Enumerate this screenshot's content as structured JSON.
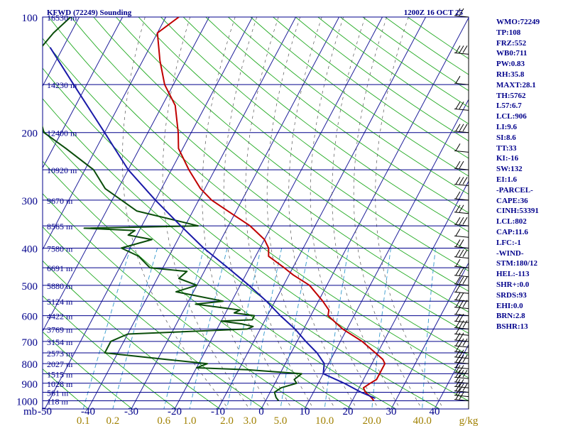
{
  "chart_data": {
    "type": "line",
    "title": "KFWD (72249) Sounding",
    "time": "1200Z 16 OCT 25",
    "pressure_unit": "mb",
    "mixing_ratio_unit": "g/kg",
    "pressure_levels": [
      100,
      200,
      300,
      400,
      500,
      600,
      700,
      800,
      900,
      1000
    ],
    "height_labels": [
      {
        "p": 100,
        "label": "16530 m"
      },
      {
        "p": 150,
        "label": "14230 m"
      },
      {
        "p": 200,
        "label": "12400 m"
      },
      {
        "p": 250,
        "label": "10920 m"
      },
      {
        "p": 300,
        "label": "9670 m"
      },
      {
        "p": 350,
        "label": "8565 m"
      },
      {
        "p": 400,
        "label": "7580 m"
      },
      {
        "p": 450,
        "label": "6691 m"
      },
      {
        "p": 500,
        "label": "5880 m"
      },
      {
        "p": 550,
        "label": "5124 m"
      },
      {
        "p": 600,
        "label": "4422 m"
      },
      {
        "p": 650,
        "label": "3769 m"
      },
      {
        "p": 700,
        "label": "3154 m"
      },
      {
        "p": 750,
        "label": "2573 m"
      },
      {
        "p": 800,
        "label": "2027 m"
      },
      {
        "p": 850,
        "label": "1515 m"
      },
      {
        "p": 900,
        "label": "1028 m"
      },
      {
        "p": 950,
        "label": "561 m"
      },
      {
        "p": 1000,
        "label": "118 m"
      }
    ],
    "temp_ticks": [
      -50,
      -40,
      -30,
      -20,
      -10,
      0,
      10,
      20,
      30,
      40
    ],
    "temp_tick_labels": [
      "-50",
      "-40",
      "-30",
      "-20",
      "-10",
      "0",
      "10",
      "20",
      "30",
      "40"
    ],
    "mixing_ratio_ticks": [
      {
        "label": "0.1",
        "value": 0.1
      },
      {
        "label": "0.2",
        "value": 0.2
      },
      {
        "label": "0.6",
        "value": 0.6
      },
      {
        "label": "1.0",
        "value": 1.0
      },
      {
        "label": "2.0",
        "value": 2.0
      },
      {
        "label": "3.0",
        "value": 3.0
      },
      {
        "label": "5.0",
        "value": 5.0
      },
      {
        "label": "10.0",
        "value": 10.0
      },
      {
        "label": "20.0",
        "value": 20.0
      },
      {
        "label": "40.0",
        "value": 40.0
      }
    ],
    "series": [
      {
        "key": "temperature",
        "color": "#c00000",
        "points": [
          [
            1000,
            25
          ],
          [
            980,
            24
          ],
          [
            950,
            22
          ],
          [
            925,
            21
          ],
          [
            900,
            22
          ],
          [
            880,
            23
          ],
          [
            850,
            23
          ],
          [
            800,
            23
          ],
          [
            780,
            22
          ],
          [
            750,
            19.5
          ],
          [
            700,
            15
          ],
          [
            650,
            9
          ],
          [
            600,
            4
          ],
          [
            580,
            3.5
          ],
          [
            550,
            1
          ],
          [
            500,
            -4
          ],
          [
            470,
            -9
          ],
          [
            450,
            -12
          ],
          [
            420,
            -17
          ],
          [
            400,
            -18
          ],
          [
            380,
            -20
          ],
          [
            350,
            -25
          ],
          [
            320,
            -32
          ],
          [
            300,
            -37
          ],
          [
            280,
            -41
          ],
          [
            250,
            -46
          ],
          [
            220,
            -51
          ],
          [
            200,
            -53
          ],
          [
            170,
            -57
          ],
          [
            150,
            -62
          ],
          [
            130,
            -66
          ],
          [
            110,
            -70
          ],
          [
            100,
            -67
          ]
        ]
      },
      {
        "key": "dewpoint",
        "color": "#0a4d0a",
        "points": [
          [
            1000,
            3
          ],
          [
            980,
            2
          ],
          [
            950,
            1
          ],
          [
            925,
            2
          ],
          [
            900,
            5
          ],
          [
            880,
            4
          ],
          [
            850,
            5
          ],
          [
            830,
            -8
          ],
          [
            820,
            -20
          ],
          [
            800,
            -18
          ],
          [
            780,
            -28
          ],
          [
            750,
            -43
          ],
          [
            700,
            -43
          ],
          [
            670,
            -40
          ],
          [
            650,
            -13
          ],
          [
            640,
            -12
          ],
          [
            630,
            -15
          ],
          [
            620,
            -20
          ],
          [
            615,
            -13
          ],
          [
            600,
            -13
          ],
          [
            590,
            -18
          ],
          [
            580,
            -17
          ],
          [
            560,
            -28
          ],
          [
            550,
            -22
          ],
          [
            520,
            -34
          ],
          [
            500,
            -30
          ],
          [
            480,
            -35
          ],
          [
            460,
            -34
          ],
          [
            450,
            -43
          ],
          [
            420,
            -47
          ],
          [
            400,
            -52
          ],
          [
            380,
            -46
          ],
          [
            370,
            -52
          ],
          [
            360,
            -51
          ],
          [
            355,
            -63
          ],
          [
            350,
            -37
          ],
          [
            320,
            -53
          ],
          [
            280,
            -63
          ],
          [
            250,
            -68
          ],
          [
            220,
            -77
          ],
          [
            200,
            -84
          ],
          [
            170,
            -89
          ],
          [
            150,
            -95
          ],
          [
            130,
            -96
          ],
          [
            110,
            -94
          ],
          [
            100,
            -92
          ]
        ]
      },
      {
        "key": "parcel",
        "color": "#1a1aa8",
        "points": [
          [
            985,
            25
          ],
          [
            950,
            21
          ],
          [
            900,
            16
          ],
          [
            850,
            10
          ],
          [
            800,
            9
          ],
          [
            750,
            6
          ],
          [
            700,
            2
          ],
          [
            650,
            -2
          ],
          [
            600,
            -7
          ],
          [
            550,
            -12
          ],
          [
            500,
            -18
          ],
          [
            450,
            -25
          ],
          [
            400,
            -33
          ],
          [
            350,
            -41
          ],
          [
            300,
            -50
          ],
          [
            250,
            -60
          ],
          [
            200,
            -70
          ],
          [
            150,
            -83
          ],
          [
            120,
            -93
          ]
        ]
      }
    ]
  },
  "stats": [
    "WMO:72249",
    "TP:108",
    "FRZ:552",
    "WB0:711",
    "PW:0.83",
    "RH:35.8",
    "MAXT:28.1",
    "TH:5762",
    "L57:6.7",
    "LCL:906",
    "LI:9.6",
    "SI:8.6",
    "TT:33",
    "KI:-16",
    "SW:132",
    "EI:1.6",
    "-PARCEL-",
    "CAPE:36",
    "CINH:53391",
    "LCL:802",
    "CAP:11.6",
    "LFC:-1",
    "-WIND-",
    "STM:180/12",
    "HEL:-113",
    "SHR+:0.0",
    "SRDS:93",
    "EHI:0.0",
    "BRN:2.8",
    "BSHR:13"
  ],
  "colors": {
    "isobar": "#00008b",
    "isotherm": "#1f1f9a",
    "dry_adiabat": "#22aa22",
    "mixing_ratio": "#3399cc",
    "moist_adiabat": "#555555",
    "title": "#00008b",
    "bottom_labels": "#a08000"
  }
}
